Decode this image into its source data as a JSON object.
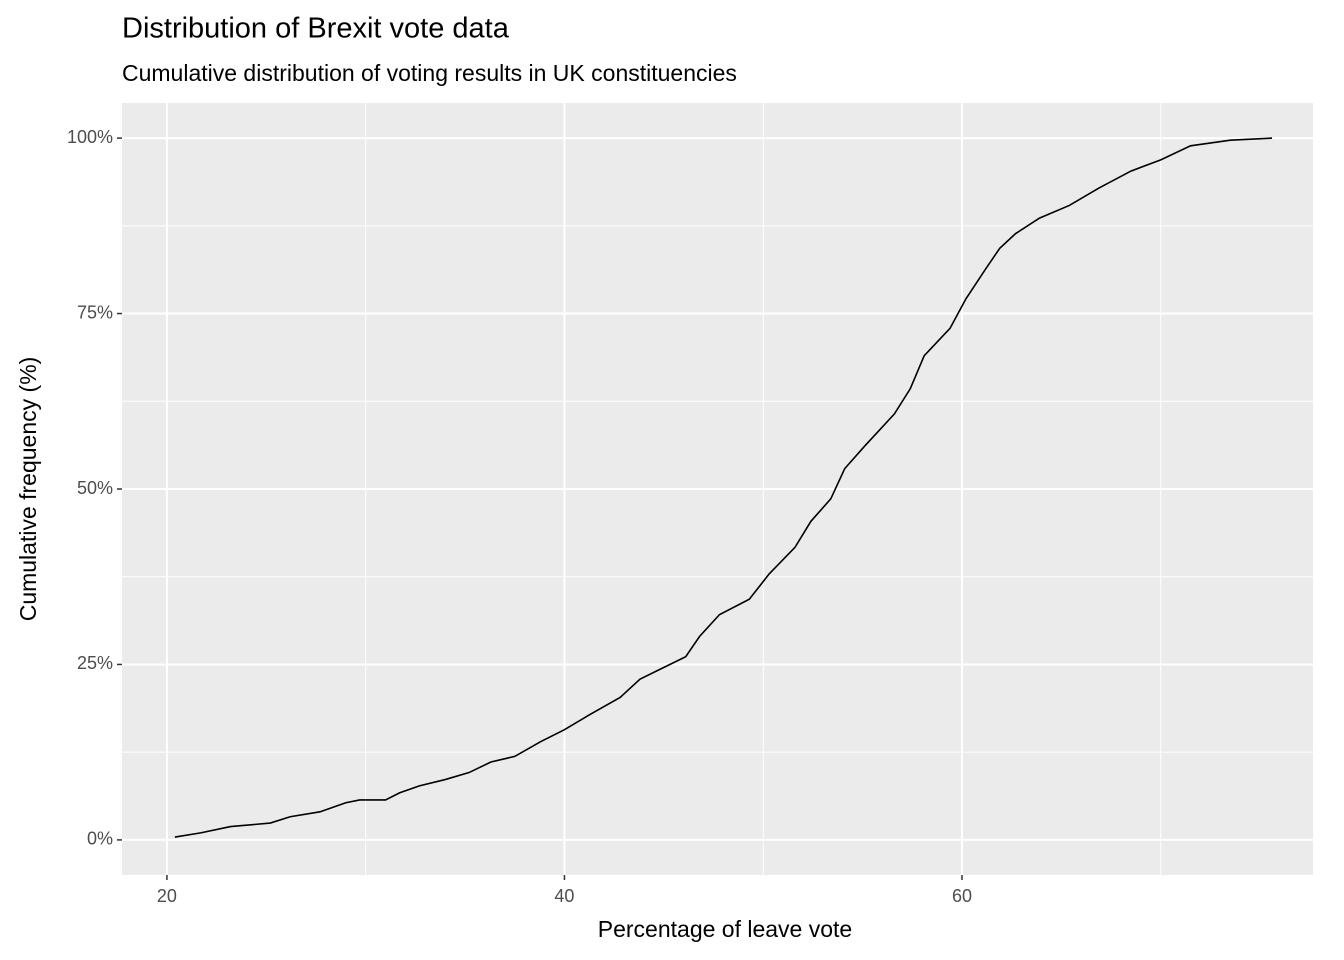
{
  "chart_data": {
    "type": "line",
    "title": "Distribution of Brexit vote data",
    "subtitle": "Cumulative distribution of voting results in UK constituencies",
    "x_label": "Percentage of leave vote",
    "y_label": "Cumulative frequency (%)",
    "x": [
      20.4,
      21.7,
      23.2,
      25.2,
      26.2,
      27.7,
      29.0,
      29.7,
      31.0,
      31.7,
      32.7,
      34.0,
      35.2,
      36.3,
      37.5,
      38.8,
      40.0,
      41.3,
      42.8,
      43.8,
      44.8,
      46.1,
      46.8,
      47.8,
      49.3,
      50.3,
      51.6,
      52.4,
      53.4,
      54.1,
      55.1,
      56.6,
      57.4,
      58.1,
      59.4,
      60.2,
      61.2,
      61.9,
      62.7,
      63.9,
      65.4,
      66.9,
      68.5,
      70.0,
      71.5,
      73.5,
      75.6
    ],
    "series": [
      {
        "color": "#000000",
        "values": [
          0.4,
          1.0,
          1.9,
          2.4,
          3.3,
          4.0,
          5.3,
          5.7,
          5.7,
          6.7,
          7.7,
          8.6,
          9.6,
          11.1,
          11.9,
          14.0,
          15.7,
          17.9,
          20.3,
          22.9,
          24.3,
          26.1,
          29.0,
          32.1,
          34.3,
          37.9,
          41.7,
          45.4,
          48.6,
          52.9,
          56.1,
          60.7,
          64.3,
          69.0,
          72.9,
          77.1,
          81.4,
          84.3,
          86.4,
          88.6,
          90.4,
          92.9,
          95.3,
          96.9,
          98.9,
          99.7,
          100
        ]
      }
    ],
    "xlim": [
      17.74,
      77.66
    ],
    "xticks": [
      20,
      40,
      60
    ],
    "xminor": [
      30,
      50,
      70
    ],
    "ylim": [
      -5,
      105
    ],
    "yticks": [
      {
        "value": 0,
        "label": "0%"
      },
      {
        "value": 25,
        "label": "25%"
      },
      {
        "value": 50,
        "label": "50%"
      },
      {
        "value": 75,
        "label": "75%"
      },
      {
        "value": 100,
        "label": "100%"
      }
    ],
    "yminor": [
      12.5,
      37.5,
      62.5,
      87.5
    ],
    "grid": true
  }
}
